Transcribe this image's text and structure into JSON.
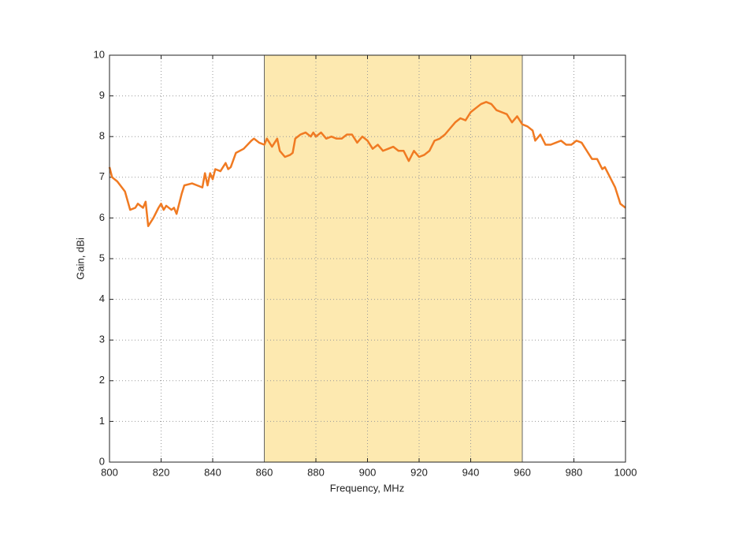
{
  "chart_data": {
    "type": "line",
    "x_label": "Frequency, MHz",
    "y_label": "Gain, dBi",
    "xlim": [
      800,
      1000
    ],
    "ylim": [
      0,
      10
    ],
    "xticks": [
      800,
      820,
      840,
      860,
      880,
      900,
      920,
      940,
      960,
      980,
      1000
    ],
    "yticks": [
      0,
      1,
      2,
      3,
      4,
      5,
      6,
      7,
      8,
      9,
      10
    ],
    "grid": true,
    "band": [
      860,
      960
    ],
    "band_color": "#fde9b0",
    "series": [
      {
        "color": "#f07a22",
        "x": [
          800,
          801,
          803,
          806,
          808,
          810,
          811,
          813,
          814,
          815,
          817,
          819,
          820,
          821,
          822,
          824,
          825,
          826,
          828,
          829,
          832,
          834,
          836,
          837,
          838,
          839,
          840,
          841,
          843,
          845,
          846,
          847,
          849,
          852,
          855,
          856,
          858,
          860,
          861,
          863,
          865,
          866,
          868,
          870,
          871,
          872,
          874,
          876,
          878,
          879,
          880,
          882,
          884,
          886,
          888,
          890,
          892,
          894,
          896,
          898,
          900,
          902,
          904,
          906,
          908,
          910,
          912,
          914,
          916,
          918,
          920,
          922,
          924,
          926,
          928,
          930,
          932,
          934,
          936,
          938,
          940,
          942,
          944,
          946,
          948,
          950,
          952,
          954,
          956,
          958,
          960,
          962,
          964,
          965,
          967,
          969,
          971,
          973,
          975,
          977,
          979,
          981,
          983,
          985,
          987,
          989,
          991,
          992,
          994,
          996,
          998,
          1000
        ],
        "values": [
          7.25,
          7.0,
          6.9,
          6.65,
          6.2,
          6.25,
          6.35,
          6.25,
          6.4,
          5.8,
          6.0,
          6.25,
          6.35,
          6.2,
          6.3,
          6.2,
          6.25,
          6.1,
          6.6,
          6.8,
          6.85,
          6.8,
          6.75,
          7.1,
          6.8,
          7.1,
          6.95,
          7.2,
          7.15,
          7.35,
          7.2,
          7.25,
          7.6,
          7.7,
          7.9,
          7.95,
          7.85,
          7.8,
          7.95,
          7.75,
          7.95,
          7.65,
          7.5,
          7.55,
          7.6,
          7.95,
          8.05,
          8.1,
          8.0,
          8.1,
          8.0,
          8.1,
          7.95,
          8.0,
          7.95,
          7.95,
          8.05,
          8.05,
          7.85,
          8.0,
          7.9,
          7.7,
          7.8,
          7.65,
          7.7,
          7.75,
          7.65,
          7.65,
          7.4,
          7.65,
          7.5,
          7.55,
          7.65,
          7.9,
          7.95,
          8.05,
          8.2,
          8.35,
          8.45,
          8.4,
          8.6,
          8.7,
          8.8,
          8.85,
          8.8,
          8.65,
          8.6,
          8.55,
          8.35,
          8.5,
          8.3,
          8.25,
          8.15,
          7.9,
          8.05,
          7.8,
          7.8,
          7.85,
          7.9,
          7.8,
          7.8,
          7.9,
          7.85,
          7.65,
          7.45,
          7.45,
          7.2,
          7.25,
          7.0,
          6.75,
          6.35,
          6.25
        ]
      }
    ]
  }
}
